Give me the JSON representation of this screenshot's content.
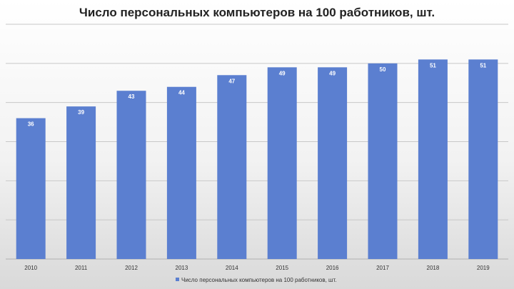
{
  "chart_data": {
    "type": "bar",
    "title": "Число персональных компьютеров на 100 работников, шт.",
    "categories": [
      "2010",
      "2011",
      "2012",
      "2013",
      "2014",
      "2015",
      "2016",
      "2017",
      "2018",
      "2019"
    ],
    "series": [
      {
        "name": "Число персональных компьютеров на 100 работников, шт.",
        "values": [
          36,
          39,
          43,
          44,
          47,
          49,
          49,
          50,
          51,
          51
        ],
        "color": "#5b7fd0"
      }
    ],
    "ylim": [
      0,
      60
    ],
    "grid": true,
    "legend_position": "bottom",
    "data_labels": true
  }
}
